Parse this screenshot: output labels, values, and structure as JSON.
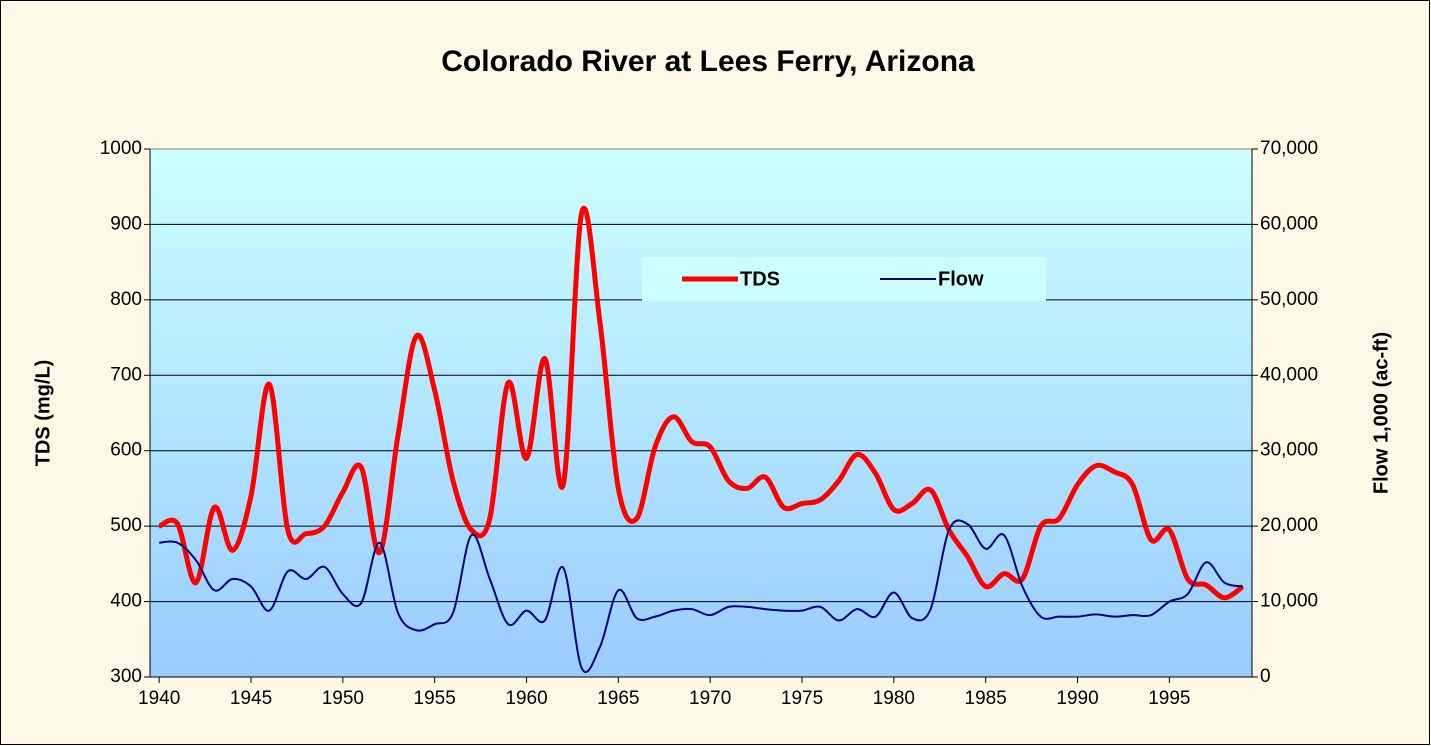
{
  "chart_data": {
    "type": "line",
    "title": "Colorado River at Lees Ferry, Arizona",
    "y_label": "TDS (mg/L)",
    "y2_label": "Flow 1,000 (ac-ft)",
    "categories": [
      1940,
      null,
      null,
      null,
      null,
      1945,
      null,
      null,
      null,
      null,
      1950,
      null,
      null,
      null,
      null,
      1955,
      null,
      null,
      null,
      null,
      1960,
      null,
      null,
      null,
      null,
      1965,
      null,
      null,
      null,
      null,
      1970,
      null,
      null,
      null,
      null,
      1975,
      null,
      null,
      null,
      null,
      1980,
      null,
      null,
      null,
      null,
      1985,
      null,
      null,
      null,
      null,
      1990,
      null,
      null,
      null,
      null,
      1995,
      null,
      null,
      null,
      null
    ],
    "series": [
      {
        "name": "TDS",
        "color": "#ff0000",
        "values": [
          500,
          503,
          425,
          525,
          468,
          540,
          688,
          495,
          490,
          500,
          545,
          578,
          465,
          620,
          752,
          680,
          560,
          495,
          510,
          690,
          590,
          722,
          555,
          915,
          770,
          550,
          510,
          605,
          645,
          612,
          605,
          560,
          550,
          565,
          525,
          530,
          535,
          560,
          595,
          570,
          522,
          530,
          548,
          495,
          460,
          420,
          437,
          430,
          500,
          510,
          555,
          580,
          572,
          555,
          482,
          495,
          430,
          422,
          405,
          420
        ]
      },
      {
        "name": "Flow",
        "color": "#000080",
        "axis": "y2",
        "values": [
          17800,
          17800,
          15500,
          11500,
          13000,
          12000,
          8800,
          14000,
          13000,
          14600,
          11000,
          9800,
          17800,
          8500,
          6200,
          7000,
          8500,
          18800,
          13000,
          7000,
          8800,
          7500,
          14500,
          1200,
          4000,
          11500,
          7800,
          8000,
          8800,
          9000,
          8200,
          9300,
          9300,
          9000,
          8800,
          8800,
          9300,
          7500,
          9000,
          8000,
          11200,
          7800,
          9000,
          19500,
          20300,
          17000,
          18800,
          12000,
          8000,
          8000,
          8000,
          8300,
          8000,
          8200,
          8200,
          10000,
          11000,
          15200,
          12500,
          12000
        ]
      }
    ],
    "ylim": [
      300,
      1000
    ],
    "yticks": [
      300,
      400,
      500,
      600,
      700,
      800,
      900,
      1000
    ],
    "y2lim": [
      0,
      70000
    ],
    "y2ticks": [
      0,
      {
        "value": 10000,
        "label": "10,000"
      },
      {
        "value": 20000,
        "label": "20,000"
      },
      {
        "value": 30000,
        "label": "30,000"
      },
      {
        "value": 40000,
        "label": "40,000"
      },
      {
        "value": 50000,
        "label": "50,000"
      },
      {
        "value": 60000,
        "label": "60,000"
      },
      {
        "value": 70000,
        "label": "70,000"
      }
    ],
    "grid": true,
    "legend": "top"
  }
}
